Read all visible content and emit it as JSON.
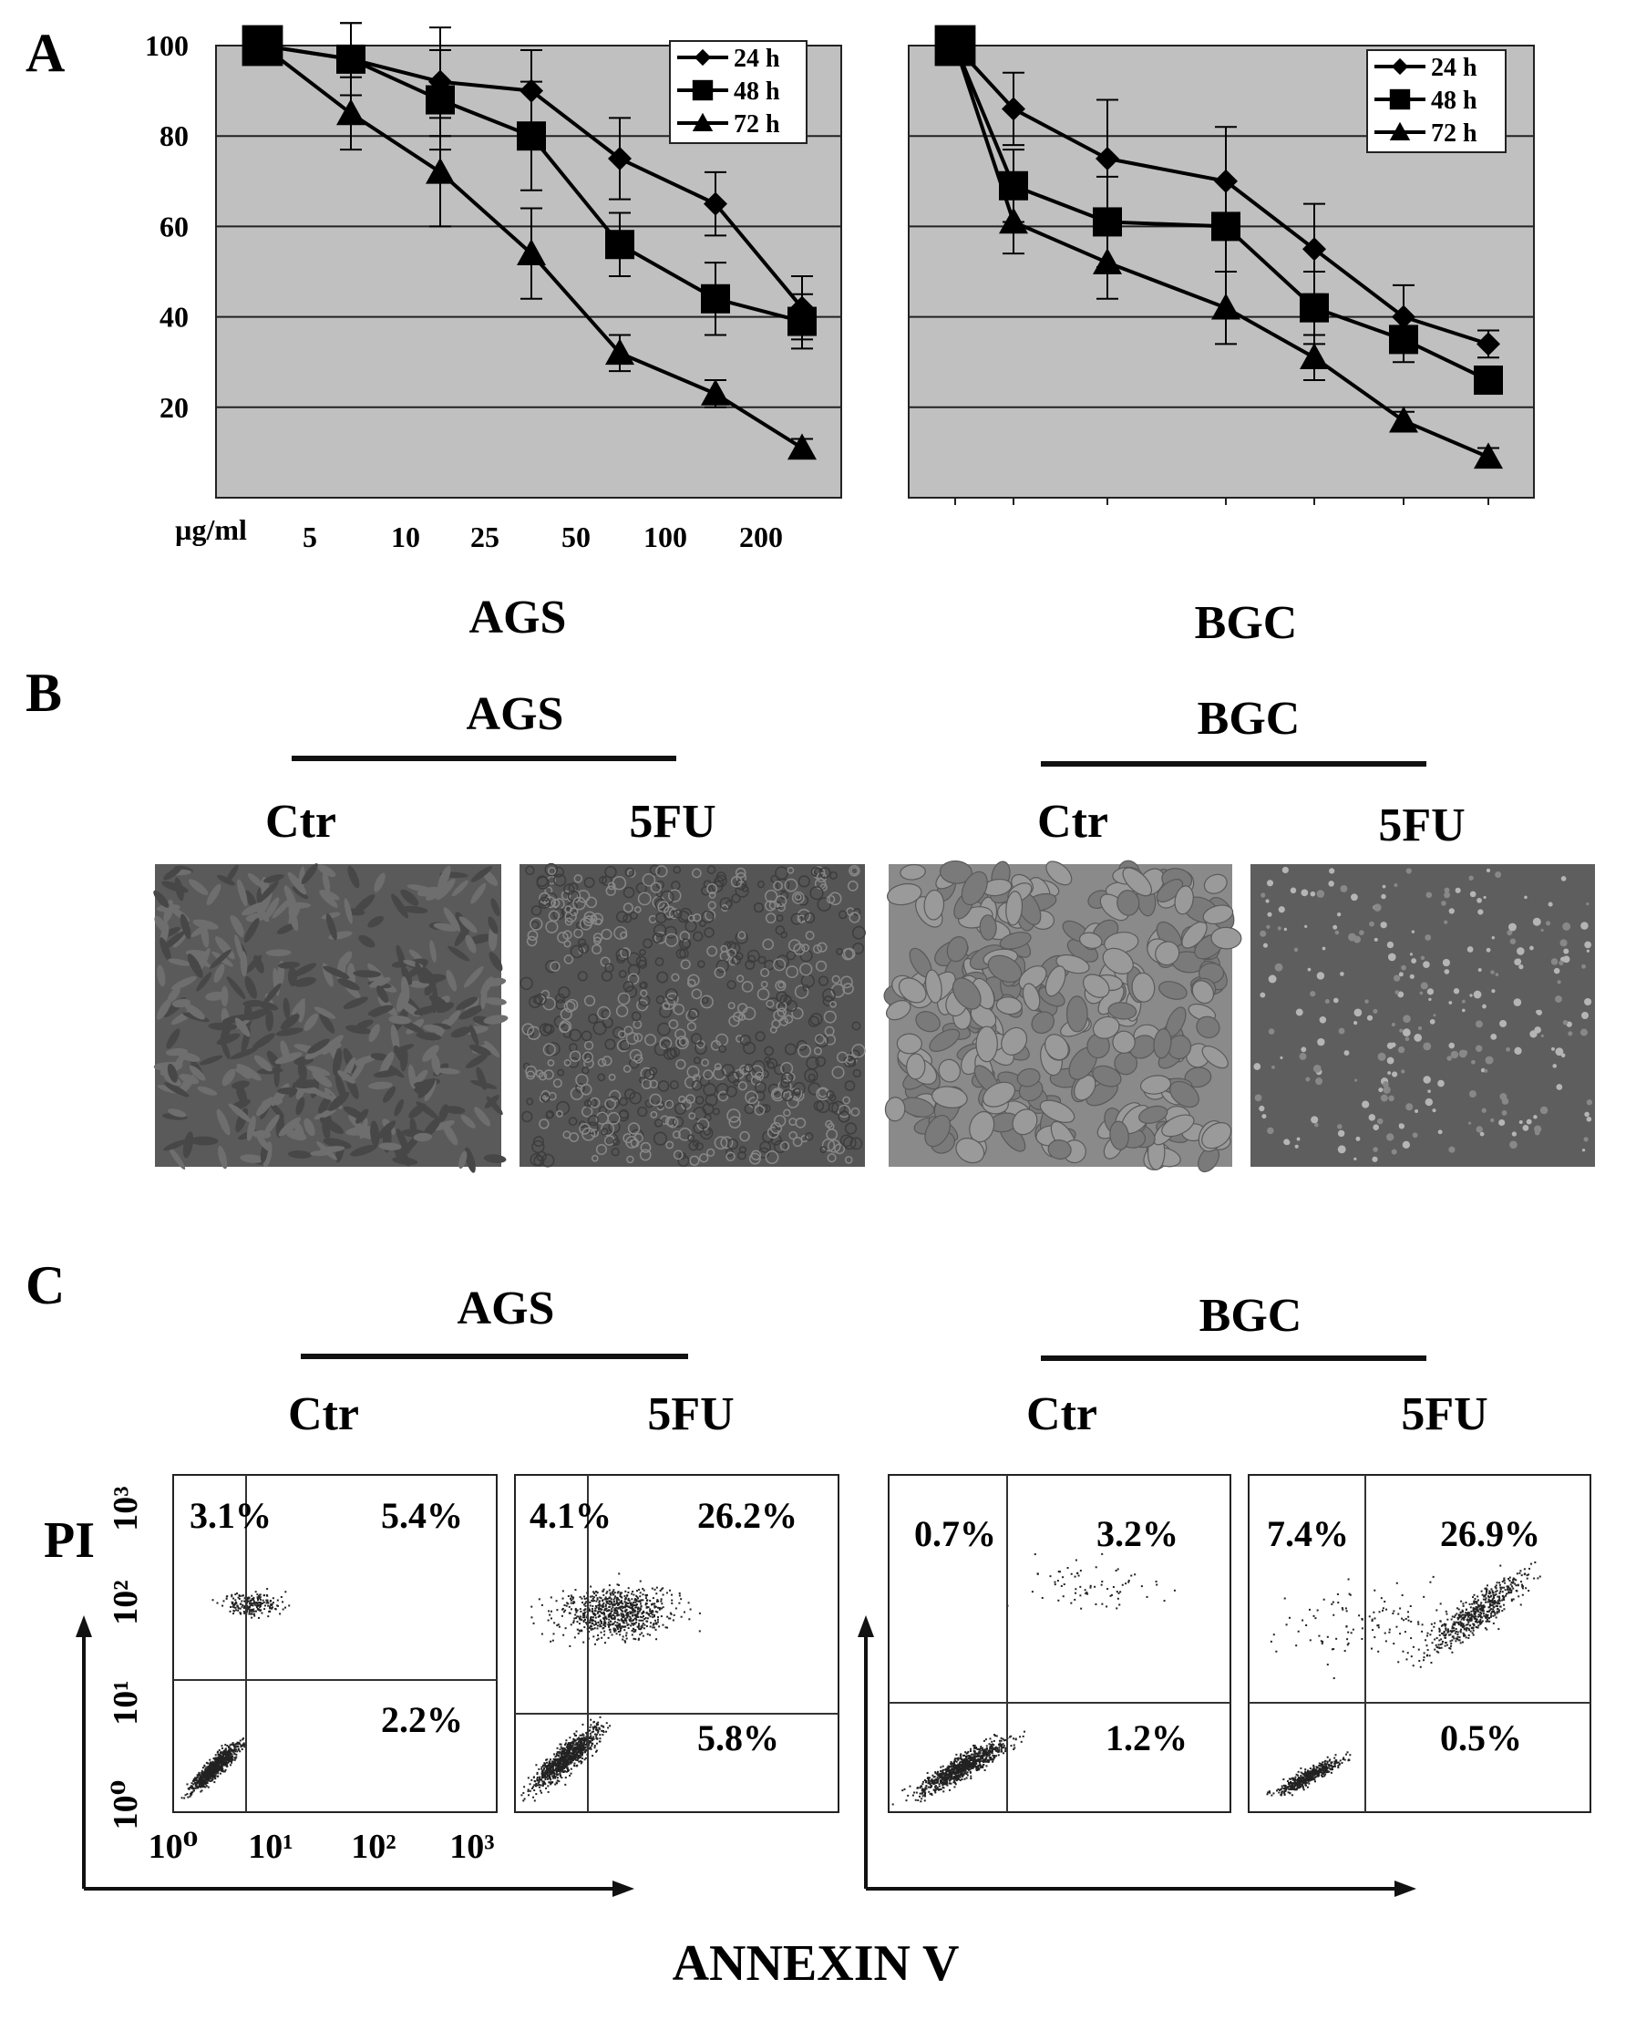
{
  "panels": {
    "a": {
      "letter": "A",
      "left_title": "AGS",
      "right_title": "BGC",
      "unit_label": "µg/ml",
      "dose_labels": [
        "5",
        "10",
        "25",
        "50",
        "100",
        "200"
      ]
    },
    "b": {
      "letter": "B",
      "left_title": "AGS",
      "right_title": "BGC",
      "labels": [
        "Ctr",
        "5FU",
        "Ctr",
        "5FU"
      ]
    },
    "c": {
      "letter": "C",
      "left_title": "AGS",
      "right_title": "BGC",
      "labels": [
        "Ctr",
        "5FU",
        "Ctr",
        "5FU"
      ],
      "y_axis_label": "PI",
      "x_axis_label": "ANNEXIN V",
      "quadrants": [
        {
          "ul": "3.1%",
          "ur": "5.4%",
          "lr": "2.2%"
        },
        {
          "ul": "4.1%",
          "ur": "26.2%",
          "lr": "5.8%"
        },
        {
          "ul": "0.7%",
          "ur": "3.2%",
          "lr": "1.2%"
        },
        {
          "ul": "7.4%",
          "ur": "26.9%",
          "lr": "0.5%"
        }
      ]
    }
  },
  "chart_data": [
    {
      "type": "line",
      "title": "AGS",
      "xlabel": "µg/ml",
      "x_tick_labels": [
        "5",
        "10",
        "25",
        "50",
        "100",
        "200"
      ],
      "y_tick_labels": [
        "100",
        "80",
        "60",
        "40",
        "20"
      ],
      "ylim": [
        0,
        100
      ],
      "grid": true,
      "legend": "top-right",
      "x": [
        0,
        5,
        10,
        25,
        50,
        100,
        200
      ],
      "series": [
        {
          "name": "24 h",
          "marker": "diamond",
          "values": [
            100,
            97,
            92,
            90,
            75,
            65,
            42
          ],
          "errors": [
            0,
            8,
            12,
            9,
            9,
            7,
            7
          ]
        },
        {
          "name": "48 h",
          "marker": "square",
          "values": [
            100,
            97,
            88,
            80,
            56,
            44,
            39
          ],
          "errors": [
            0,
            8,
            11,
            12,
            7,
            8,
            6
          ]
        },
        {
          "name": "72 h",
          "marker": "triangle",
          "values": [
            100,
            85,
            72,
            54,
            32,
            23,
            11
          ],
          "errors": [
            0,
            8,
            12,
            10,
            4,
            3,
            2
          ]
        }
      ]
    },
    {
      "type": "line",
      "title": "BGC",
      "ylim": [
        0,
        100
      ],
      "grid": true,
      "legend": "top-right",
      "x": [
        0,
        5,
        10,
        25,
        50,
        100,
        200
      ],
      "series": [
        {
          "name": "24 h",
          "marker": "diamond",
          "values": [
            100,
            86,
            75,
            70,
            55,
            40,
            34
          ],
          "errors": [
            0,
            8,
            13,
            12,
            10,
            7,
            3
          ]
        },
        {
          "name": "48 h",
          "marker": "square",
          "values": [
            100,
            69,
            61,
            60,
            42,
            35,
            26
          ],
          "errors": [
            0,
            8,
            10,
            10,
            8,
            5,
            3
          ]
        },
        {
          "name": "72 h",
          "marker": "triangle",
          "values": [
            100,
            61,
            52,
            42,
            31,
            17,
            9
          ],
          "errors": [
            0,
            7,
            8,
            8,
            5,
            2,
            2
          ]
        }
      ]
    }
  ],
  "flow_axis_ticks": {
    "x": [
      "10⁰",
      "10¹",
      "10²",
      "10³"
    ],
    "y": [
      "10⁰",
      "10¹",
      "10²",
      "10³"
    ]
  }
}
